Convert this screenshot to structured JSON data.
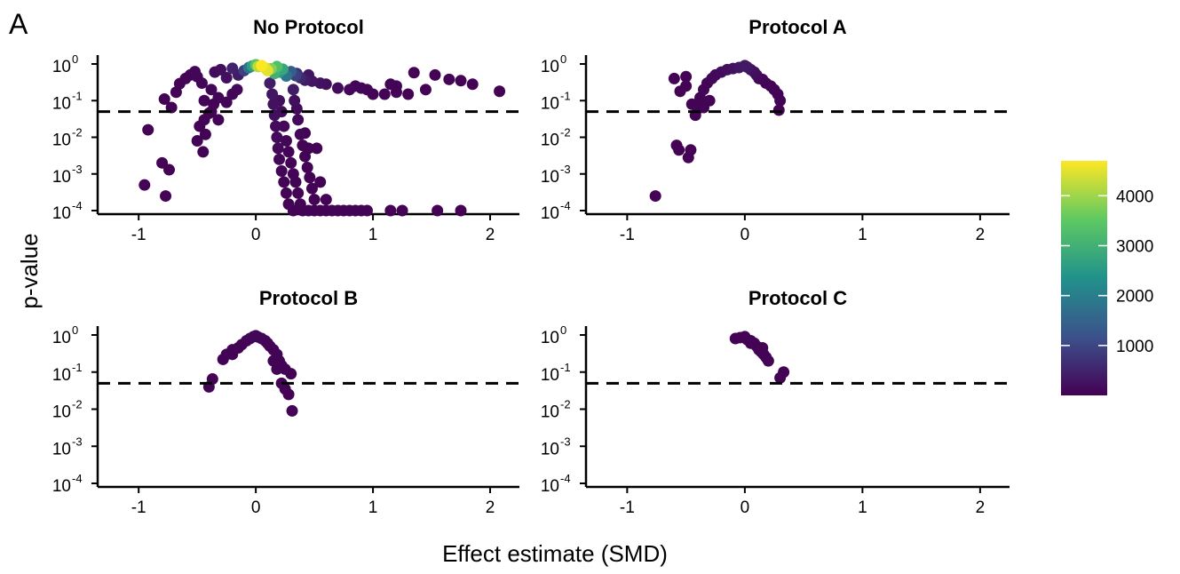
{
  "figure": {
    "panel_letter": "A",
    "xlabel": "Effect estimate (SMD)",
    "ylabel": "p-value"
  },
  "colorbar": {
    "min": 0,
    "max": 4700,
    "ticks": [
      1000,
      2000,
      3000,
      4000
    ],
    "tick_labels": [
      "1000",
      "2000",
      "3000",
      "4000"
    ],
    "palette": [
      "#440154",
      "#3b528b",
      "#21918c",
      "#5ec962",
      "#fde725"
    ]
  },
  "colors": {
    "points_low": "#440154",
    "threshold_line": "#000000"
  },
  "chart_data": [
    {
      "type": "scatter",
      "title": "No Protocol",
      "xlim": [
        -1.35,
        2.25
      ],
      "ylim": [
        -4,
        0
      ],
      "y_scale": "log10",
      "threshold_p": 0.05,
      "xticks": [
        -1,
        0,
        1,
        2
      ],
      "xtick_labels": [
        "-1",
        "0",
        "1",
        "2"
      ],
      "yticks": [
        -4,
        -3,
        -2,
        -1,
        0
      ],
      "ytick_bases": [
        "10",
        "10",
        "10",
        "10",
        "10"
      ],
      "ytick_exps": [
        "-4",
        "-3",
        "-2",
        "-1",
        "0"
      ],
      "points": [
        [
          -0.95,
          0.0005,
          30
        ],
        [
          -0.92,
          0.016,
          30
        ],
        [
          -0.8,
          0.002,
          30
        ],
        [
          -0.77,
          0.00025,
          30
        ],
        [
          -0.74,
          0.0013,
          30
        ],
        [
          -0.78,
          0.11,
          40
        ],
        [
          -0.72,
          0.065,
          40
        ],
        [
          -0.68,
          0.17,
          50
        ],
        [
          -0.65,
          0.29,
          50
        ],
        [
          -0.6,
          0.4,
          60
        ],
        [
          -0.56,
          0.5,
          60
        ],
        [
          -0.52,
          0.62,
          80
        ],
        [
          -0.5,
          0.45,
          80
        ],
        [
          -0.46,
          0.3,
          80
        ],
        [
          -0.44,
          0.1,
          60
        ],
        [
          -0.4,
          0.045,
          50
        ],
        [
          -0.38,
          0.2,
          90
        ],
        [
          -0.35,
          0.6,
          150
        ],
        [
          -0.3,
          0.7,
          200
        ],
        [
          -0.25,
          0.42,
          220
        ],
        [
          -0.2,
          0.76,
          500
        ],
        [
          -0.15,
          0.5,
          400
        ],
        [
          -0.1,
          0.66,
          900
        ],
        [
          -0.06,
          0.8,
          1800
        ],
        [
          -0.03,
          0.88,
          2600
        ],
        [
          0.0,
          0.95,
          3400
        ],
        [
          0.02,
          0.85,
          4200
        ],
        [
          0.05,
          0.9,
          4700
        ],
        [
          0.08,
          0.78,
          4400
        ],
        [
          0.1,
          0.66,
          4500
        ],
        [
          0.13,
          0.74,
          3800
        ],
        [
          0.16,
          0.55,
          3000
        ],
        [
          0.18,
          0.85,
          3300
        ],
        [
          0.2,
          0.6,
          2500
        ],
        [
          0.23,
          0.72,
          2800
        ],
        [
          0.26,
          0.47,
          1800
        ],
        [
          0.3,
          0.62,
          1400
        ],
        [
          0.34,
          0.48,
          900
        ],
        [
          0.38,
          0.42,
          600
        ],
        [
          0.42,
          0.36,
          400
        ],
        [
          0.48,
          0.34,
          300
        ],
        [
          0.55,
          0.3,
          250
        ],
        [
          0.6,
          0.28,
          200
        ],
        [
          0.7,
          0.22,
          150
        ],
        [
          0.8,
          0.2,
          100
        ],
        [
          0.9,
          0.22,
          80
        ],
        [
          0.95,
          0.2,
          60
        ],
        [
          1.0,
          0.15,
          50
        ],
        [
          1.1,
          0.15,
          40
        ],
        [
          1.2,
          0.17,
          35
        ],
        [
          0.85,
          0.25,
          60
        ],
        [
          0.35,
          0.55,
          700
        ],
        [
          0.45,
          0.5,
          300
        ],
        [
          -0.48,
          0.02,
          40
        ],
        [
          -0.5,
          0.008,
          40
        ],
        [
          -0.45,
          0.004,
          40
        ],
        [
          -0.44,
          0.03,
          40
        ],
        [
          -0.43,
          0.012,
          40
        ],
        [
          -0.38,
          0.05,
          50
        ],
        [
          -0.36,
          0.08,
          60
        ],
        [
          -0.32,
          0.03,
          50
        ],
        [
          -0.32,
          0.12,
          70
        ],
        [
          -0.25,
          0.09,
          70
        ],
        [
          -0.2,
          0.15,
          80
        ],
        [
          -0.16,
          0.2,
          100
        ],
        [
          0.12,
          0.3,
          400
        ],
        [
          0.14,
          0.15,
          300
        ],
        [
          0.15,
          0.08,
          250
        ],
        [
          0.16,
          0.04,
          200
        ],
        [
          0.17,
          0.02,
          150
        ],
        [
          0.18,
          0.01,
          120
        ],
        [
          0.19,
          0.005,
          100
        ],
        [
          0.2,
          0.0025,
          80
        ],
        [
          0.22,
          0.0012,
          60
        ],
        [
          0.24,
          0.0006,
          50
        ],
        [
          0.26,
          0.0003,
          40
        ],
        [
          0.28,
          0.00015,
          40
        ],
        [
          0.32,
          0.0001,
          40
        ],
        [
          0.2,
          0.1,
          200
        ],
        [
          0.22,
          0.05,
          150
        ],
        [
          0.24,
          0.02,
          100
        ],
        [
          0.26,
          0.008,
          80
        ],
        [
          0.28,
          0.004,
          60
        ],
        [
          0.3,
          0.002,
          50
        ],
        [
          0.32,
          0.001,
          40
        ],
        [
          0.34,
          0.0006,
          40
        ],
        [
          0.36,
          0.0003,
          40
        ],
        [
          0.38,
          0.00015,
          40
        ],
        [
          0.4,
          0.0001,
          40
        ],
        [
          0.32,
          0.2,
          400
        ],
        [
          0.33,
          0.1,
          200
        ],
        [
          0.35,
          0.06,
          150
        ],
        [
          0.36,
          0.03,
          100
        ],
        [
          0.38,
          0.012,
          80
        ],
        [
          0.4,
          0.006,
          60
        ],
        [
          0.42,
          0.003,
          50
        ],
        [
          0.44,
          0.0015,
          40
        ],
        [
          0.46,
          0.0008,
          40
        ],
        [
          0.48,
          0.0004,
          40
        ],
        [
          0.5,
          0.0002,
          40
        ],
        [
          0.45,
          0.0001,
          40
        ],
        [
          0.5,
          0.0001,
          40
        ],
        [
          0.55,
          0.0001,
          40
        ],
        [
          0.6,
          0.0001,
          40
        ],
        [
          0.65,
          0.0001,
          40
        ],
        [
          0.7,
          0.0001,
          40
        ],
        [
          0.75,
          0.0001,
          40
        ],
        [
          0.8,
          0.0001,
          40
        ],
        [
          0.85,
          0.0001,
          40
        ],
        [
          0.9,
          0.0001,
          40
        ],
        [
          0.95,
          0.0001,
          40
        ],
        [
          1.15,
          0.0001,
          30
        ],
        [
          1.25,
          0.0001,
          30
        ],
        [
          1.55,
          0.0001,
          30
        ],
        [
          1.75,
          0.0001,
          30
        ],
        [
          0.42,
          0.013,
          40
        ],
        [
          0.45,
          0.005,
          40
        ],
        [
          0.52,
          0.005,
          40
        ],
        [
          0.55,
          0.0006,
          40
        ],
        [
          0.6,
          0.0002,
          40
        ],
        [
          1.15,
          0.28,
          40
        ],
        [
          1.2,
          0.25,
          40
        ],
        [
          1.3,
          0.15,
          30
        ],
        [
          1.35,
          0.58,
          30
        ],
        [
          1.45,
          0.2,
          30
        ],
        [
          1.53,
          0.5,
          30
        ],
        [
          1.65,
          0.38,
          30
        ],
        [
          1.75,
          0.35,
          30
        ],
        [
          1.85,
          0.28,
          30
        ],
        [
          2.08,
          0.18,
          30
        ]
      ]
    },
    {
      "type": "scatter",
      "title": "Protocol A",
      "xlim": [
        -1.35,
        2.25
      ],
      "ylim": [
        -4,
        0
      ],
      "y_scale": "log10",
      "threshold_p": 0.05,
      "xticks": [
        -1,
        0,
        1,
        2
      ],
      "xtick_labels": [
        "-1",
        "0",
        "1",
        "2"
      ],
      "yticks": [
        -4,
        -3,
        -2,
        -1,
        0
      ],
      "ytick_bases": [
        "10",
        "10",
        "10",
        "10",
        "10"
      ],
      "ytick_exps": [
        "-4",
        "-3",
        "-2",
        "-1",
        "0"
      ],
      "points": [
        [
          -0.76,
          0.00025,
          30
        ],
        [
          -0.58,
          0.006,
          30
        ],
        [
          -0.56,
          0.0045,
          30
        ],
        [
          -0.48,
          0.0028,
          30
        ],
        [
          -0.46,
          0.0045,
          30
        ],
        [
          -0.55,
          0.18,
          40
        ],
        [
          -0.5,
          0.25,
          40
        ],
        [
          -0.45,
          0.08,
          40
        ],
        [
          -0.42,
          0.04,
          40
        ],
        [
          -0.4,
          0.06,
          40
        ],
        [
          -0.38,
          0.12,
          50
        ],
        [
          -0.35,
          0.2,
          60
        ],
        [
          -0.32,
          0.3,
          60
        ],
        [
          -0.3,
          0.1,
          50
        ],
        [
          -0.28,
          0.4,
          80
        ],
        [
          -0.25,
          0.5,
          100
        ],
        [
          -0.2,
          0.6,
          150
        ],
        [
          -0.15,
          0.7,
          200
        ],
        [
          -0.1,
          0.75,
          250
        ],
        [
          -0.05,
          0.8,
          300
        ],
        [
          0.0,
          0.9,
          350
        ],
        [
          0.02,
          0.82,
          300
        ],
        [
          0.05,
          0.7,
          250
        ],
        [
          0.08,
          0.6,
          200
        ],
        [
          0.1,
          0.5,
          150
        ],
        [
          0.12,
          0.4,
          100
        ],
        [
          0.15,
          0.38,
          80
        ],
        [
          0.18,
          0.3,
          60
        ],
        [
          0.22,
          0.25,
          50
        ],
        [
          0.25,
          0.2,
          40
        ],
        [
          0.28,
          0.15,
          40
        ],
        [
          0.3,
          0.1,
          40
        ],
        [
          0.29,
          0.055,
          30
        ],
        [
          -0.35,
          0.065,
          40
        ],
        [
          -0.6,
          0.4,
          30
        ],
        [
          -0.5,
          0.45,
          40
        ]
      ]
    },
    {
      "type": "scatter",
      "title": "Protocol B",
      "xlim": [
        -1.35,
        2.25
      ],
      "ylim": [
        -4,
        0
      ],
      "y_scale": "log10",
      "threshold_p": 0.05,
      "xticks": [
        -1,
        0,
        1,
        2
      ],
      "xtick_labels": [
        "-1",
        "0",
        "1",
        "2"
      ],
      "yticks": [
        -4,
        -3,
        -2,
        -1,
        0
      ],
      "ytick_bases": [
        "10",
        "10",
        "10",
        "10",
        "10"
      ],
      "ytick_exps": [
        "-4",
        "-3",
        "-2",
        "-1",
        "0"
      ],
      "points": [
        [
          -0.4,
          0.04,
          30
        ],
        [
          -0.37,
          0.065,
          30
        ],
        [
          -0.28,
          0.22,
          40
        ],
        [
          -0.25,
          0.3,
          40
        ],
        [
          -0.2,
          0.4,
          40
        ],
        [
          -0.15,
          0.45,
          50
        ],
        [
          -0.12,
          0.55,
          50
        ],
        [
          -0.08,
          0.7,
          60
        ],
        [
          -0.05,
          0.8,
          70
        ],
        [
          -0.02,
          0.9,
          80
        ],
        [
          0.0,
          0.95,
          90
        ],
        [
          0.02,
          0.88,
          80
        ],
        [
          0.05,
          0.8,
          70
        ],
        [
          0.08,
          0.7,
          60
        ],
        [
          0.1,
          0.6,
          50
        ],
        [
          0.12,
          0.5,
          40
        ],
        [
          0.15,
          0.4,
          40
        ],
        [
          0.18,
          0.3,
          40
        ],
        [
          0.2,
          0.2,
          40
        ],
        [
          0.22,
          0.15,
          40
        ],
        [
          0.25,
          0.12,
          40
        ],
        [
          0.3,
          0.09,
          30
        ],
        [
          0.22,
          0.05,
          30
        ],
        [
          0.25,
          0.035,
          30
        ],
        [
          0.28,
          0.025,
          30
        ],
        [
          0.31,
          0.009,
          30
        ],
        [
          0.15,
          0.2,
          40
        ],
        [
          0.18,
          0.12,
          40
        ],
        [
          -0.2,
          0.3,
          40
        ]
      ]
    },
    {
      "type": "scatter",
      "title": "Protocol C",
      "xlim": [
        -1.35,
        2.25
      ],
      "ylim": [
        -4,
        0
      ],
      "y_scale": "log10",
      "threshold_p": 0.05,
      "xticks": [
        -1,
        0,
        1,
        2
      ],
      "xtick_labels": [
        "-1",
        "0",
        "1",
        "2"
      ],
      "yticks": [
        -4,
        -3,
        -2,
        -1,
        0
      ],
      "ytick_bases": [
        "10",
        "10",
        "10",
        "10",
        "10"
      ],
      "ytick_exps": [
        "-4",
        "-3",
        "-2",
        "-1",
        "0"
      ],
      "points": [
        [
          -0.08,
          0.8,
          30
        ],
        [
          -0.04,
          0.85,
          30
        ],
        [
          0.0,
          0.9,
          30
        ],
        [
          0.02,
          0.75,
          30
        ],
        [
          0.05,
          0.7,
          30
        ],
        [
          0.08,
          0.6,
          30
        ],
        [
          0.1,
          0.5,
          30
        ],
        [
          0.12,
          0.4,
          30
        ],
        [
          0.14,
          0.35,
          30
        ],
        [
          0.16,
          0.3,
          30
        ],
        [
          0.18,
          0.25,
          30
        ],
        [
          0.2,
          0.2,
          30
        ],
        [
          0.3,
          0.07,
          30
        ],
        [
          0.33,
          0.1,
          30
        ],
        [
          0.05,
          0.6,
          30
        ],
        [
          0.15,
          0.45,
          30
        ]
      ]
    }
  ]
}
